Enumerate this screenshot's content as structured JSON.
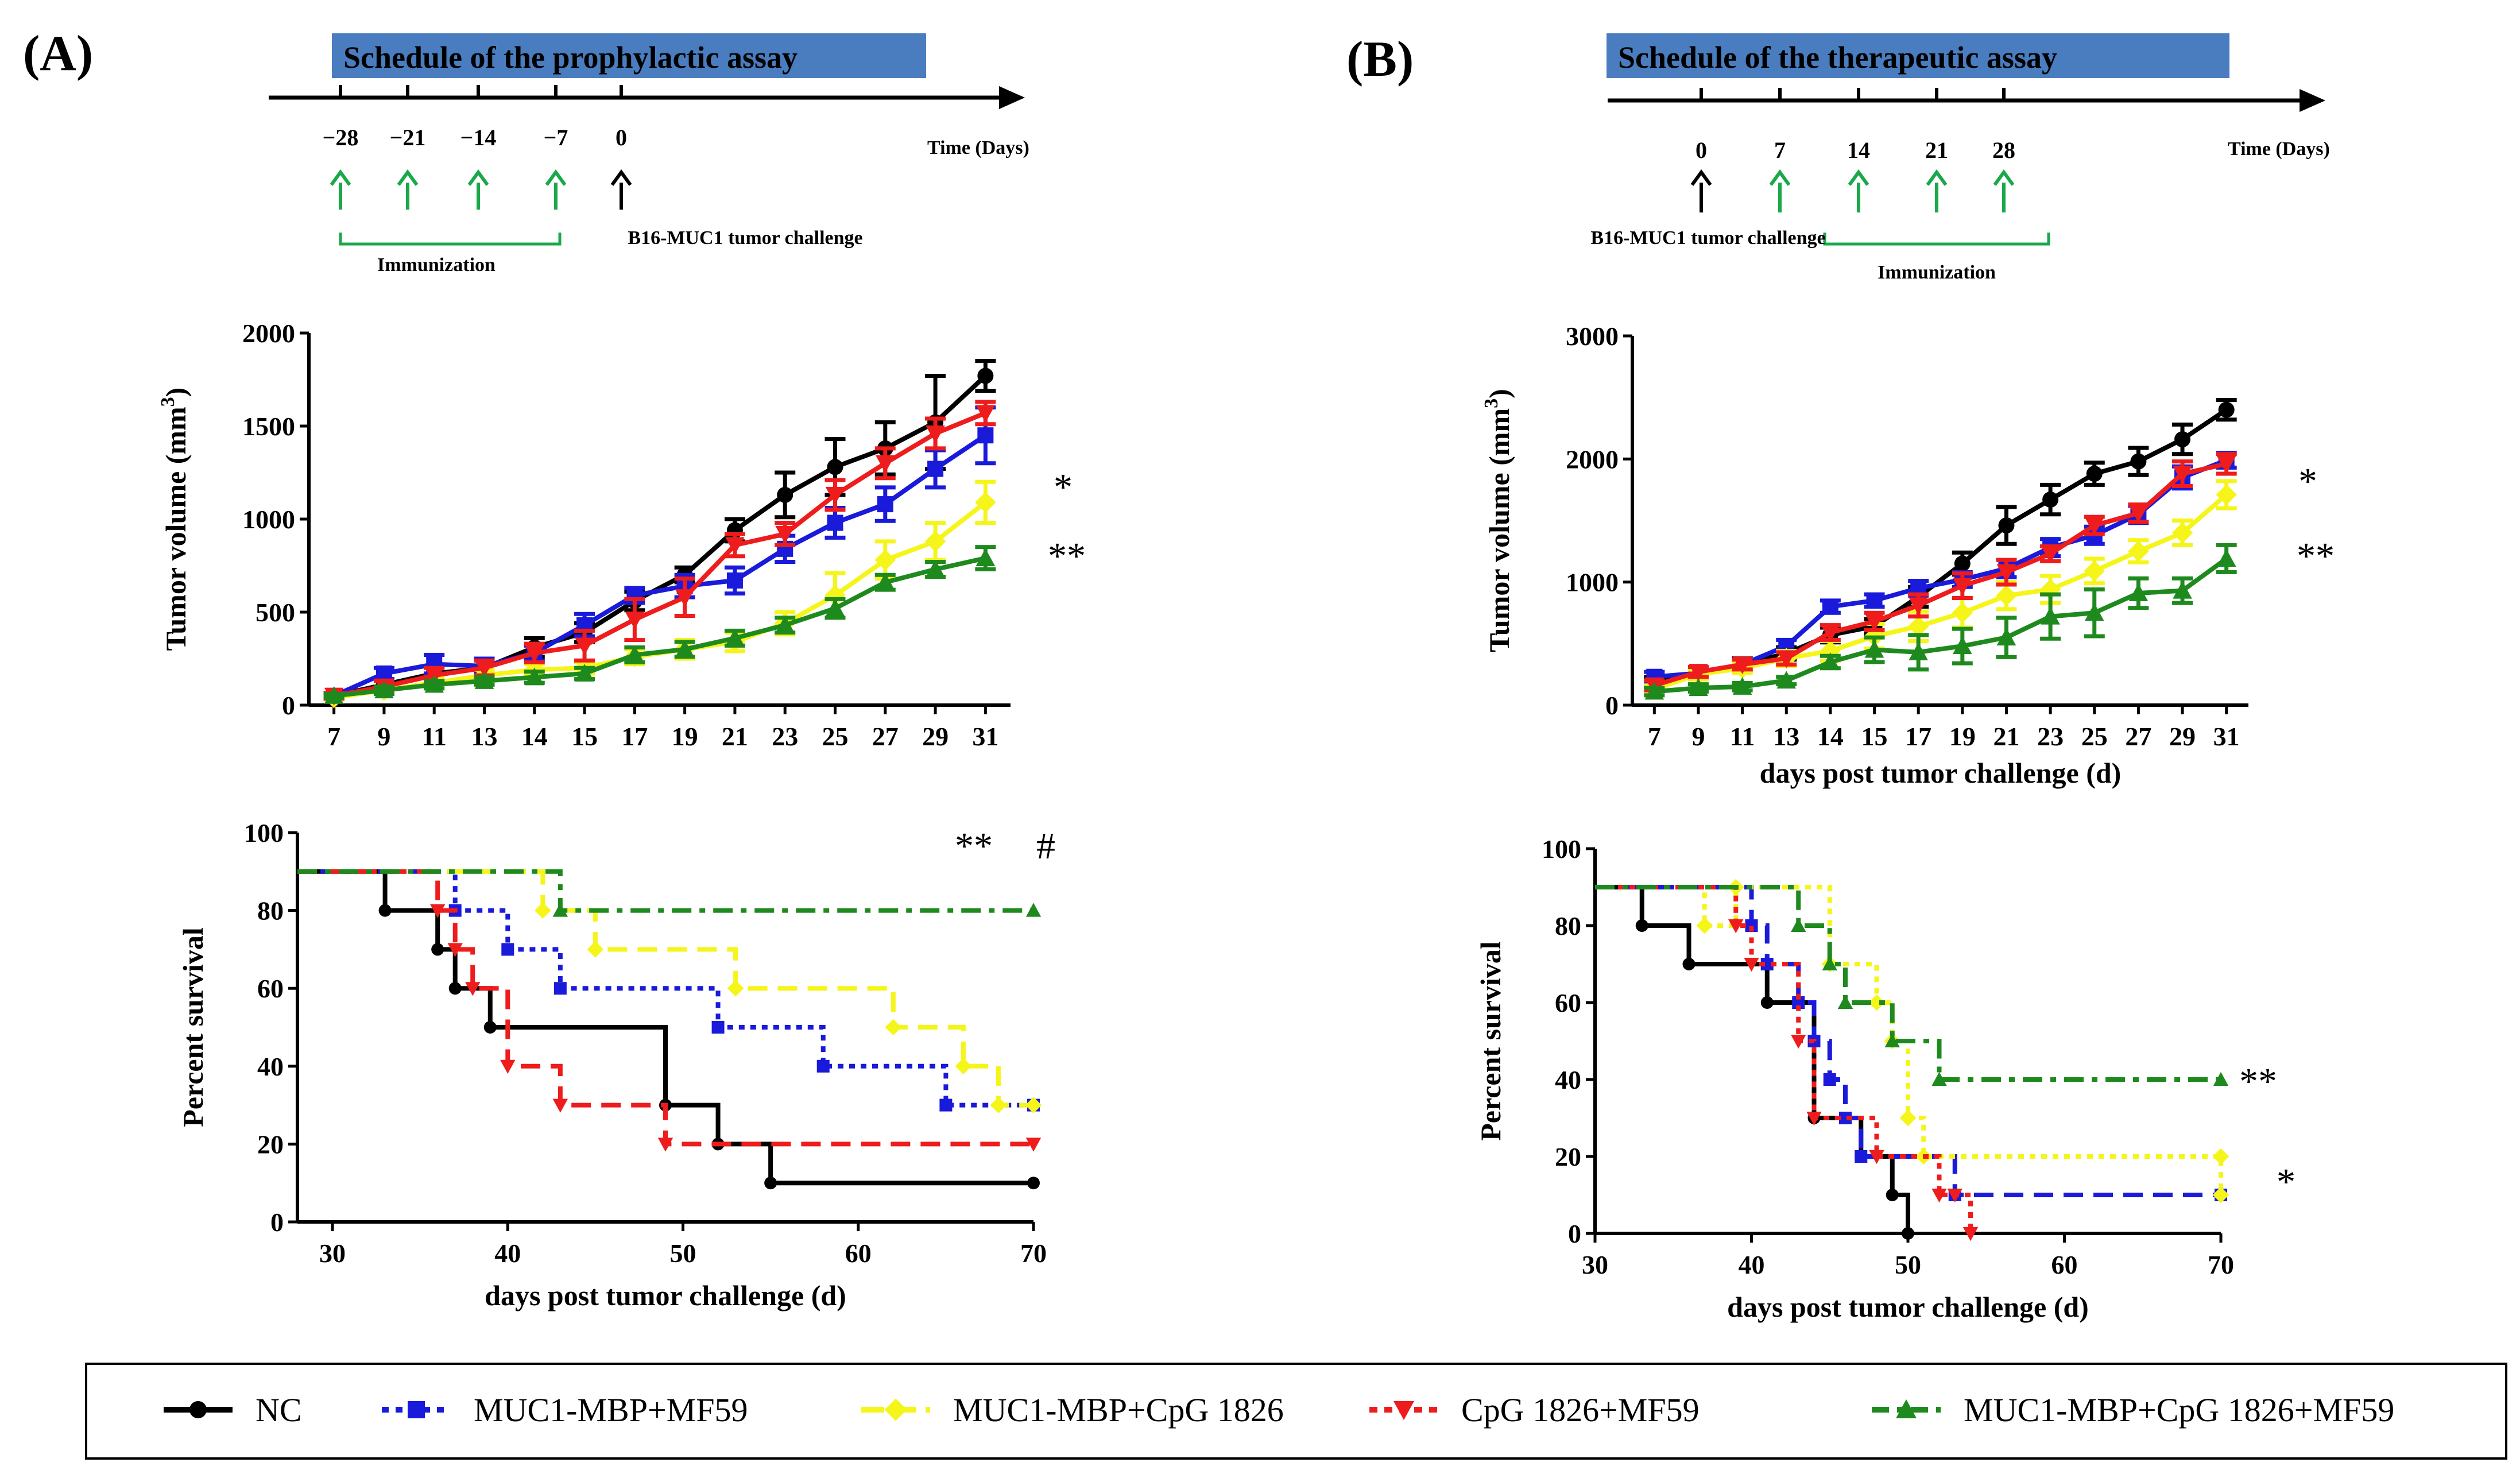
{
  "panels": {
    "A": {
      "label": "(A)",
      "schedule": {
        "title": "Schedule of the prophylactic assay",
        "time_label": "Time (Days)",
        "ticks": [
          {
            "label": "−28",
            "day": -28,
            "color": "#1aa84a"
          },
          {
            "label": "−21",
            "day": -21,
            "color": "#1aa84a"
          },
          {
            "label": "−14",
            "day": -14,
            "color": "#1aa84a"
          },
          {
            "label": "−7",
            "day": -7,
            "color": "#1aa84a"
          },
          {
            "label": "0",
            "day": 0,
            "color": "#000000"
          }
        ],
        "immunization_label": "Immunization",
        "challenge_label": "B16-MUC1 tumor challenge"
      }
    },
    "B": {
      "label": "(B)",
      "schedule": {
        "title": "Schedule of the therapeutic assay",
        "time_label": "Time (Days)",
        "ticks": [
          {
            "label": "0",
            "day": 0,
            "color": "#000000"
          },
          {
            "label": "7",
            "day": 7,
            "color": "#1aa84a"
          },
          {
            "label": "14",
            "day": 14,
            "color": "#1aa84a"
          },
          {
            "label": "21",
            "day": 21,
            "color": "#1aa84a"
          },
          {
            "label": "28",
            "day": 28,
            "color": "#1aa84a"
          }
        ],
        "immunization_label": "Immunization",
        "challenge_label": "B16-MUC1 tumor challenge"
      }
    }
  },
  "colors": {
    "NC": "#000000",
    "MUC1-MBP+MF59": "#1a1adb",
    "MUC1-MBP+CpG 1826": "#f5f51a",
    "CpG 1826+MF59": "#ee1c1c",
    "MUC1-MBP+CpG 1826+MF59": "#1e8a1e",
    "schedule_bar": "#4a7dbf"
  },
  "legend": [
    {
      "name": "NC",
      "marker": "circle"
    },
    {
      "name": "MUC1-MBP+MF59",
      "marker": "square"
    },
    {
      "name": "MUC1-MBP+CpG 1826",
      "marker": "diamond"
    },
    {
      "name": "CpG 1826+MF59",
      "marker": "triangle-down"
    },
    {
      "name": "MUC1-MBP+CpG 1826+MF59",
      "marker": "triangle-up"
    }
  ],
  "chart_data": [
    {
      "id": "A-volume",
      "type": "line",
      "xlabel": "",
      "ylabel": "Tumor volume (mm3)",
      "categories": [
        "7",
        "9",
        "11",
        "13",
        "14",
        "15",
        "17",
        "19",
        "21",
        "23",
        "25",
        "27",
        "29",
        "31"
      ],
      "ylim": [
        0,
        2000
      ],
      "yticks": [
        0,
        500,
        1000,
        1500,
        2000
      ],
      "significance": [
        "*",
        "**"
      ],
      "series": [
        {
          "name": "NC",
          "values": [
            50,
            110,
            170,
            200,
            310,
            390,
            560,
            700,
            940,
            1130,
            1280,
            1380,
            1520,
            1770
          ],
          "errors": [
            15,
            25,
            40,
            40,
            50,
            50,
            50,
            40,
            60,
            120,
            150,
            140,
            250,
            80
          ]
        },
        {
          "name": "MUC1-MBP+MF59",
          "values": [
            50,
            170,
            220,
            210,
            280,
            430,
            590,
            640,
            670,
            840,
            980,
            1080,
            1270,
            1450
          ],
          "errors": [
            15,
            30,
            50,
            40,
            40,
            60,
            40,
            60,
            70,
            70,
            80,
            90,
            100,
            150
          ]
        },
        {
          "name": "MUC1-MBP+CpG 1826",
          "values": [
            40,
            80,
            120,
            160,
            190,
            200,
            260,
            300,
            340,
            440,
            590,
            780,
            880,
            1090
          ],
          "errors": [
            10,
            20,
            30,
            30,
            30,
            30,
            40,
            50,
            50,
            60,
            120,
            100,
            100,
            110
          ]
        },
        {
          "name": "CpG 1826+MF59",
          "values": [
            50,
            100,
            160,
            200,
            280,
            320,
            460,
            580,
            860,
            920,
            1130,
            1300,
            1460,
            1570
          ],
          "errors": [
            15,
            30,
            40,
            40,
            50,
            80,
            110,
            100,
            60,
            60,
            80,
            80,
            80,
            60
          ]
        },
        {
          "name": "MUC1-MBP+CpG 1826+MF59",
          "values": [
            50,
            80,
            110,
            130,
            150,
            170,
            270,
            300,
            360,
            430,
            520,
            660,
            730,
            790
          ],
          "errors": [
            10,
            20,
            20,
            20,
            30,
            30,
            40,
            40,
            40,
            40,
            50,
            40,
            40,
            60
          ]
        }
      ]
    },
    {
      "id": "B-volume",
      "type": "line",
      "xlabel": "days post tumor challenge (d)",
      "ylabel": "Tumor volume (mm3)",
      "categories": [
        "7",
        "9",
        "11",
        "13",
        "14",
        "15",
        "17",
        "19",
        "21",
        "23",
        "25",
        "27",
        "29",
        "31"
      ],
      "ylim": [
        0,
        3000
      ],
      "yticks": [
        0,
        1000,
        2000,
        3000
      ],
      "significance": [
        "*",
        "**"
      ],
      "series": [
        {
          "name": "NC",
          "values": [
            190,
            260,
            330,
            420,
            570,
            640,
            880,
            1150,
            1460,
            1670,
            1880,
            1980,
            2160,
            2400
          ],
          "errors": [
            40,
            40,
            50,
            50,
            60,
            60,
            80,
            90,
            150,
            120,
            90,
            110,
            120,
            80
          ]
        },
        {
          "name": "MUC1-MBP+MF59",
          "values": [
            230,
            260,
            330,
            480,
            800,
            850,
            950,
            1020,
            1110,
            1280,
            1380,
            1550,
            1850,
            1990
          ],
          "errors": [
            40,
            40,
            40,
            50,
            50,
            50,
            60,
            60,
            70,
            70,
            70,
            70,
            90,
            60
          ]
        },
        {
          "name": "MUC1-MBP+CpG 1826",
          "values": [
            130,
            250,
            300,
            380,
            440,
            560,
            640,
            750,
            890,
            940,
            1090,
            1250,
            1400,
            1710
          ],
          "errors": [
            30,
            40,
            40,
            60,
            80,
            100,
            120,
            120,
            110,
            110,
            100,
            90,
            100,
            110
          ]
        },
        {
          "name": "CpG 1826+MF59",
          "values": [
            160,
            270,
            330,
            380,
            590,
            680,
            810,
            970,
            1080,
            1230,
            1460,
            1560,
            1880,
            1960
          ],
          "errors": [
            40,
            40,
            40,
            50,
            60,
            70,
            90,
            100,
            100,
            60,
            70,
            70,
            100,
            80
          ]
        },
        {
          "name": "MUC1-MBP+CpG 1826+MF59",
          "values": [
            110,
            140,
            150,
            200,
            350,
            450,
            430,
            480,
            550,
            720,
            750,
            910,
            930,
            1190
          ],
          "errors": [
            30,
            30,
            30,
            30,
            50,
            100,
            140,
            140,
            160,
            180,
            190,
            120,
            100,
            110
          ]
        }
      ]
    },
    {
      "id": "A-survival",
      "type": "step",
      "xlabel": "days post tumor challenge (d)",
      "ylabel": "Percent survival",
      "xlim": [
        28,
        70
      ],
      "xticks": [
        30,
        40,
        50,
        60,
        70
      ],
      "ylim": [
        0,
        100
      ],
      "yticks": [
        0,
        20,
        40,
        60,
        80,
        100
      ],
      "significance": [
        "**",
        "#"
      ],
      "series": [
        {
          "name": "NC",
          "style": "solid",
          "points": [
            [
              28,
              90
            ],
            [
              33,
              80
            ],
            [
              36,
              70
            ],
            [
              37,
              60
            ],
            [
              39,
              50
            ],
            [
              49,
              30
            ],
            [
              52,
              20
            ],
            [
              55,
              10
            ],
            [
              70,
              10
            ]
          ]
        },
        {
          "name": "MUC1-MBP+MF59",
          "style": "dotted",
          "points": [
            [
              28,
              90
            ],
            [
              37,
              80
            ],
            [
              40,
              70
            ],
            [
              43,
              60
            ],
            [
              52,
              50
            ],
            [
              58,
              40
            ],
            [
              65,
              30
            ],
            [
              70,
              30
            ]
          ]
        },
        {
          "name": "MUC1-MBP+CpG 1826",
          "style": "dashed",
          "points": [
            [
              28,
              90
            ],
            [
              42,
              80
            ],
            [
              45,
              70
            ],
            [
              53,
              60
            ],
            [
              62,
              50
            ],
            [
              66,
              40
            ],
            [
              68,
              30
            ],
            [
              70,
              30
            ]
          ]
        },
        {
          "name": "CpG 1826+MF59",
          "style": "dashed",
          "points": [
            [
              28,
              90
            ],
            [
              36,
              80
            ],
            [
              37,
              70
            ],
            [
              38,
              60
            ],
            [
              40,
              40
            ],
            [
              43,
              30
            ],
            [
              49,
              20
            ],
            [
              70,
              20
            ]
          ]
        },
        {
          "name": "MUC1-MBP+CpG 1826+MF59",
          "style": "dashdot",
          "points": [
            [
              28,
              90
            ],
            [
              43,
              80
            ],
            [
              70,
              80
            ]
          ]
        }
      ]
    },
    {
      "id": "B-survival",
      "type": "step",
      "xlabel": "days post tumor challenge (d)",
      "ylabel": "Percent survival",
      "xlim": [
        30,
        70
      ],
      "xticks": [
        30,
        40,
        50,
        60,
        70
      ],
      "ylim": [
        0,
        100
      ],
      "yticks": [
        0,
        20,
        40,
        60,
        80,
        100
      ],
      "significance": [
        "**",
        "*"
      ],
      "series": [
        {
          "name": "NC",
          "style": "solid",
          "points": [
            [
              30,
              90
            ],
            [
              33,
              80
            ],
            [
              36,
              70
            ],
            [
              41,
              60
            ],
            [
              44,
              30
            ],
            [
              47,
              20
            ],
            [
              49,
              10
            ],
            [
              50,
              0
            ]
          ]
        },
        {
          "name": "MUC1-MBP+MF59",
          "style": "dashed",
          "points": [
            [
              30,
              90
            ],
            [
              40,
              80
            ],
            [
              41,
              70
            ],
            [
              43,
              60
            ],
            [
              44,
              50
            ],
            [
              45,
              40
            ],
            [
              46,
              30
            ],
            [
              47,
              20
            ],
            [
              53,
              10
            ],
            [
              70,
              10
            ]
          ]
        },
        {
          "name": "MUC1-MBP+CpG 1826",
          "style": "dotted",
          "points": [
            [
              30,
              90
            ],
            [
              37,
              80
            ],
            [
              39,
              90
            ],
            [
              45,
              70
            ],
            [
              48,
              60
            ],
            [
              49,
              50
            ],
            [
              50,
              30
            ],
            [
              51,
              20
            ],
            [
              70,
              20
            ],
            [
              70,
              10
            ]
          ]
        },
        {
          "name": "CpG 1826+MF59",
          "style": "dotted",
          "points": [
            [
              30,
              90
            ],
            [
              39,
              80
            ],
            [
              40,
              70
            ],
            [
              43,
              50
            ],
            [
              44,
              30
            ],
            [
              48,
              20
            ],
            [
              52,
              10
            ],
            [
              53,
              10
            ],
            [
              54,
              0
            ]
          ]
        },
        {
          "name": "MUC1-MBP+CpG 1826+MF59",
          "style": "dashdot",
          "points": [
            [
              30,
              90
            ],
            [
              43,
              80
            ],
            [
              45,
              70
            ],
            [
              46,
              60
            ],
            [
              49,
              50
            ],
            [
              52,
              40
            ],
            [
              70,
              40
            ]
          ]
        }
      ]
    }
  ]
}
